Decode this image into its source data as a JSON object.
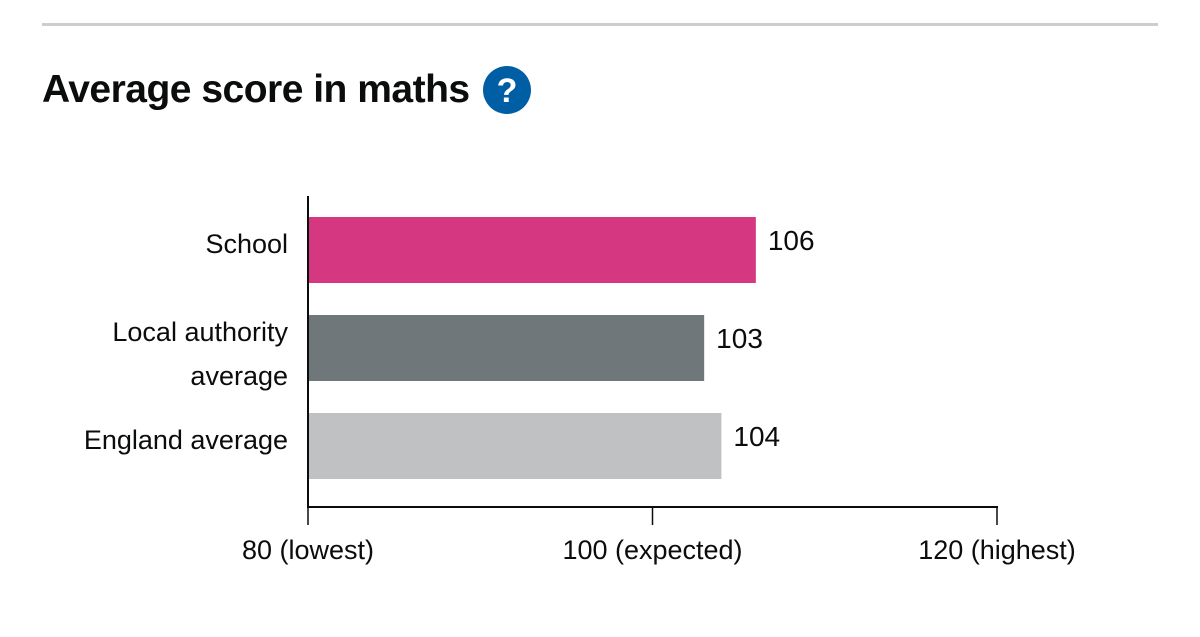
{
  "heading": {
    "title": "Average score in maths",
    "help_icon": "question-circle-icon",
    "help_icon_glyph": "?"
  },
  "chart_data": {
    "type": "bar",
    "orientation": "horizontal",
    "title": "",
    "xlabel": "",
    "ylabel": "",
    "categories": [
      [
        "School"
      ],
      [
        "Local authority",
        "average"
      ],
      [
        "England average"
      ]
    ],
    "values": [
      106,
      103,
      104
    ],
    "colors": [
      "#d53880",
      "#6f777b",
      "#bfc1c3"
    ],
    "xlim": [
      80,
      120
    ],
    "ticks": [
      {
        "value": 80,
        "label": "80 (lowest)"
      },
      {
        "value": 100,
        "label": "100 (expected)"
      },
      {
        "value": 120,
        "label": "120 (highest)"
      }
    ],
    "grid": false,
    "legend": "none"
  },
  "colors": {
    "help_icon": "#005ea5",
    "axis": "#0b0c0c",
    "rule": "#cdcdcd"
  }
}
